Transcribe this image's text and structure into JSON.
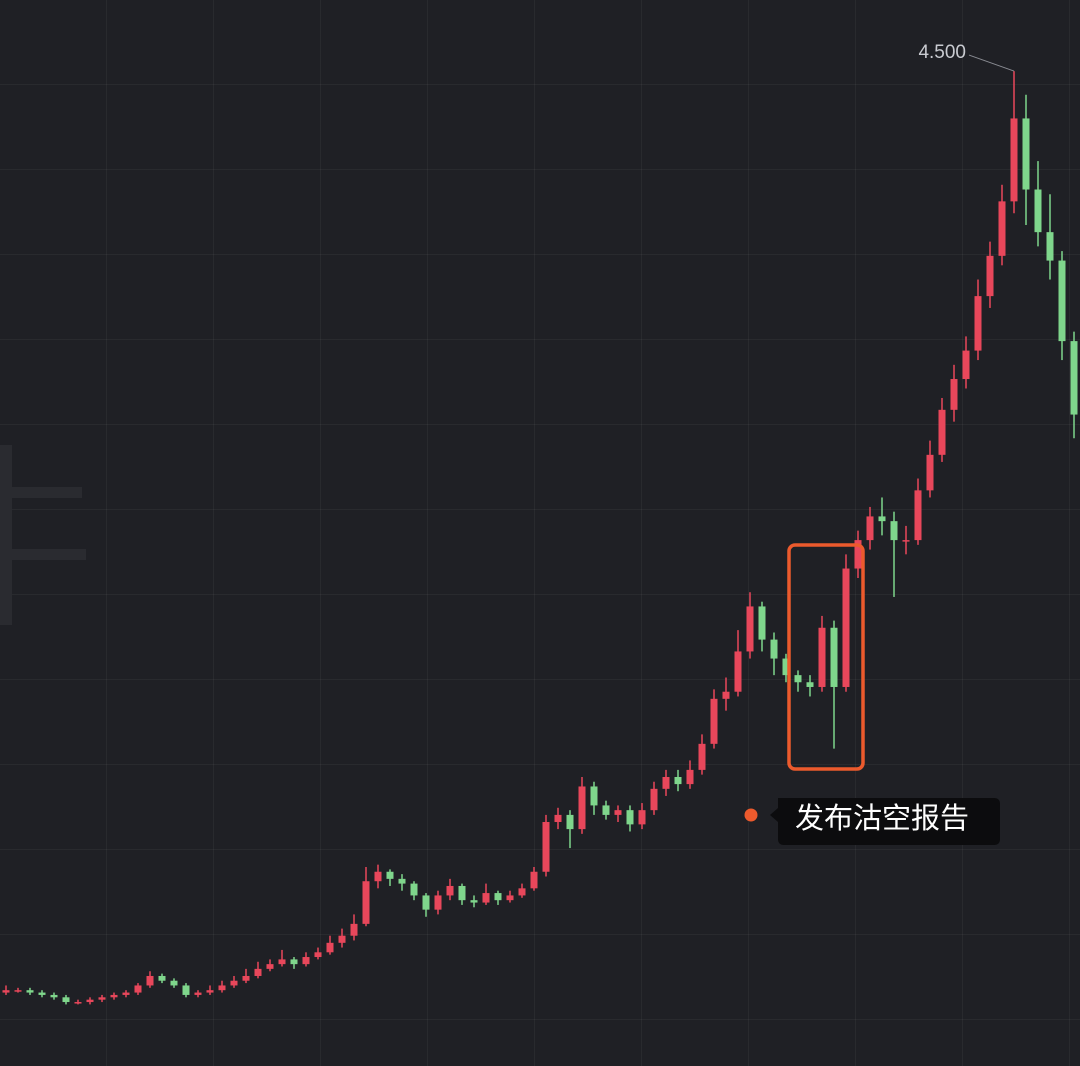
{
  "chart_data": {
    "type": "candlestick",
    "ylim": [
      0.3,
      4.8
    ],
    "up_color": "#e8475b",
    "down_color": "#7fd68c",
    "peak_label": "4.500",
    "annotation": "发布沽空报告",
    "open": [
      0.61,
      0.62,
      0.62,
      0.61,
      0.6,
      0.59,
      0.57,
      0.57,
      0.58,
      0.59,
      0.6,
      0.61,
      0.64,
      0.68,
      0.66,
      0.64,
      0.6,
      0.61,
      0.62,
      0.64,
      0.66,
      0.68,
      0.71,
      0.73,
      0.75,
      0.73,
      0.76,
      0.78,
      0.82,
      0.85,
      0.9,
      1.08,
      1.12,
      1.09,
      1.07,
      1.02,
      0.96,
      1.02,
      1.06,
      1.0,
      0.99,
      1.03,
      1.0,
      1.02,
      1.05,
      1.12,
      1.33,
      1.36,
      1.3,
      1.48,
      1.4,
      1.36,
      1.38,
      1.32,
      1.38,
      1.47,
      1.52,
      1.49,
      1.55,
      1.66,
      1.85,
      1.88,
      2.05,
      2.24,
      2.1,
      2.02,
      1.95,
      1.92,
      1.9,
      2.15,
      1.9,
      2.4,
      2.52,
      2.62,
      2.6,
      2.52,
      2.52,
      2.73,
      2.88,
      3.07,
      3.2,
      3.32,
      3.55,
      3.72,
      3.95,
      4.3,
      4.0,
      3.82,
      3.7,
      3.36
    ],
    "high": [
      0.64,
      0.63,
      0.63,
      0.62,
      0.61,
      0.6,
      0.58,
      0.59,
      0.6,
      0.61,
      0.62,
      0.65,
      0.7,
      0.69,
      0.67,
      0.65,
      0.62,
      0.64,
      0.66,
      0.68,
      0.71,
      0.74,
      0.75,
      0.79,
      0.76,
      0.78,
      0.8,
      0.85,
      0.88,
      0.94,
      1.14,
      1.15,
      1.13,
      1.11,
      1.08,
      1.03,
      1.04,
      1.09,
      1.07,
      1.02,
      1.07,
      1.04,
      1.04,
      1.07,
      1.14,
      1.36,
      1.39,
      1.38,
      1.52,
      1.5,
      1.42,
      1.4,
      1.4,
      1.41,
      1.5,
      1.55,
      1.55,
      1.59,
      1.7,
      1.89,
      1.94,
      2.14,
      2.3,
      2.26,
      2.13,
      2.04,
      1.97,
      1.95,
      2.2,
      2.18,
      2.46,
      2.56,
      2.66,
      2.7,
      2.64,
      2.58,
      2.78,
      2.94,
      3.12,
      3.26,
      3.38,
      3.62,
      3.78,
      4.02,
      4.5,
      4.4,
      4.12,
      3.98,
      3.74,
      3.4
    ],
    "low": [
      0.6,
      0.61,
      0.6,
      0.59,
      0.58,
      0.56,
      0.56,
      0.56,
      0.57,
      0.58,
      0.59,
      0.6,
      0.63,
      0.65,
      0.63,
      0.59,
      0.59,
      0.6,
      0.61,
      0.63,
      0.65,
      0.67,
      0.7,
      0.72,
      0.71,
      0.72,
      0.75,
      0.77,
      0.8,
      0.83,
      0.89,
      1.05,
      1.06,
      1.04,
      1.0,
      0.93,
      0.94,
      1.0,
      0.98,
      0.97,
      0.98,
      0.98,
      0.99,
      1.01,
      1.04,
      1.1,
      1.3,
      1.22,
      1.28,
      1.36,
      1.34,
      1.33,
      1.29,
      1.3,
      1.36,
      1.44,
      1.46,
      1.47,
      1.53,
      1.64,
      1.8,
      1.86,
      2.02,
      2.05,
      1.95,
      1.92,
      1.88,
      1.86,
      1.88,
      1.64,
      1.88,
      2.36,
      2.48,
      2.54,
      2.28,
      2.46,
      2.5,
      2.7,
      2.85,
      3.02,
      3.16,
      3.28,
      3.5,
      3.68,
      3.9,
      3.85,
      3.76,
      3.62,
      3.28,
      2.95
    ],
    "close": [
      0.62,
      0.62,
      0.61,
      0.6,
      0.59,
      0.57,
      0.57,
      0.58,
      0.59,
      0.6,
      0.61,
      0.64,
      0.68,
      0.66,
      0.64,
      0.6,
      0.61,
      0.62,
      0.64,
      0.66,
      0.68,
      0.71,
      0.73,
      0.75,
      0.73,
      0.76,
      0.78,
      0.82,
      0.85,
      0.9,
      1.08,
      1.12,
      1.09,
      1.07,
      1.02,
      0.96,
      1.02,
      1.06,
      1.0,
      0.99,
      1.03,
      1.0,
      1.02,
      1.05,
      1.12,
      1.33,
      1.36,
      1.3,
      1.48,
      1.4,
      1.36,
      1.38,
      1.32,
      1.38,
      1.47,
      1.52,
      1.49,
      1.55,
      1.66,
      1.85,
      1.88,
      2.05,
      2.24,
      2.1,
      2.02,
      1.95,
      1.92,
      1.9,
      2.15,
      1.9,
      2.4,
      2.52,
      2.62,
      2.6,
      2.52,
      2.52,
      2.73,
      2.88,
      3.07,
      3.2,
      3.32,
      3.55,
      3.72,
      3.95,
      4.3,
      4.0,
      3.82,
      3.7,
      3.36,
      3.05
    ]
  }
}
